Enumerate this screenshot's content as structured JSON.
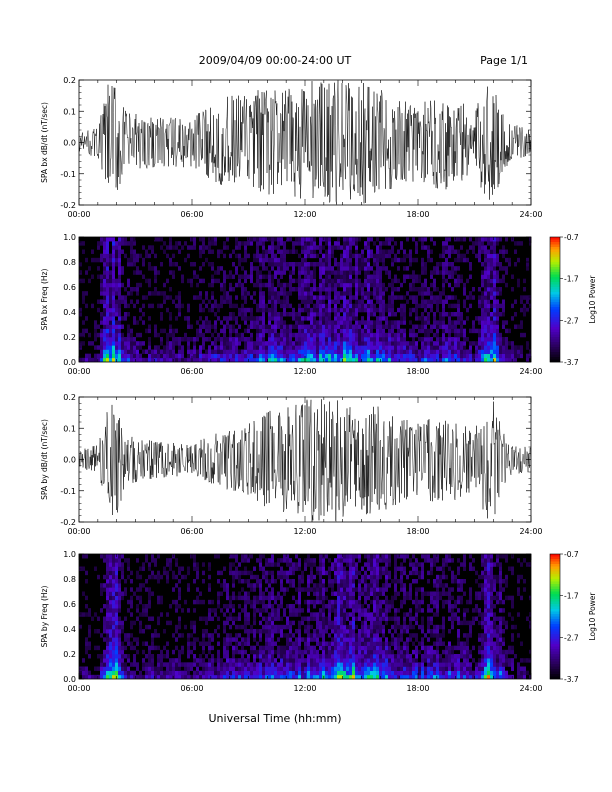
{
  "header": {
    "title": "2009/04/09   00:00-24:00 UT",
    "page": "Page 1/1"
  },
  "footer": {
    "xlabel": "Universal Time (hh:mm)"
  },
  "chart_data": [
    {
      "type": "line",
      "ylabel": "SPA bx dB/dt (nT/sec)",
      "ylim": [
        -0.2,
        0.2
      ],
      "yticks": [
        "0.2",
        "0.1",
        "0.0",
        "-0.1",
        "-0.2"
      ],
      "xticks": [
        "00:00",
        "06:00",
        "12:00",
        "18:00",
        "24:00"
      ],
      "xlim_hours": [
        0,
        24
      ],
      "x": [
        0,
        1,
        1.6,
        1.9,
        2.5,
        4,
        6,
        7,
        8,
        9,
        10,
        11,
        12,
        13,
        14,
        15,
        16,
        17,
        18,
        19,
        20,
        21,
        21.7,
        22,
        22.5,
        23,
        24
      ],
      "y_envelope": [
        0.03,
        0.05,
        0.2,
        0.2,
        0.1,
        0.08,
        0.08,
        0.12,
        0.15,
        0.16,
        0.18,
        0.17,
        0.2,
        0.2,
        0.2,
        0.2,
        0.18,
        0.14,
        0.12,
        0.15,
        0.15,
        0.1,
        0.2,
        0.2,
        0.1,
        0.06,
        0.04
      ],
      "color": "#000000"
    },
    {
      "type": "heatmap",
      "ylabel": "SPA bx Freq (Hz)",
      "ylim": [
        0.0,
        1.0
      ],
      "yticks": [
        "1.0",
        "0.8",
        "0.6",
        "0.4",
        "0.2",
        "0.0"
      ],
      "xticks": [
        "00:00",
        "06:00",
        "12:00",
        "18:00",
        "24:00"
      ],
      "xlim_hours": [
        0,
        24
      ],
      "colorbar": {
        "label": "Log10 Power",
        "min": -3.7,
        "max": -0.7,
        "ticks": [
          "-0.7",
          "-1.7",
          "-2.7",
          "-3.7"
        ]
      },
      "activity_hours": [
        0,
        1,
        1.6,
        1.9,
        2.5,
        4,
        6,
        7,
        8,
        9,
        10,
        11,
        12,
        13,
        14,
        15,
        16,
        17,
        18,
        19,
        20,
        21,
        21.7,
        22,
        22.5,
        23,
        24
      ],
      "activity_level": [
        0.2,
        0.3,
        1.0,
        1.0,
        0.45,
        0.35,
        0.35,
        0.45,
        0.5,
        0.55,
        0.6,
        0.6,
        0.65,
        0.75,
        0.85,
        0.8,
        0.7,
        0.55,
        0.5,
        0.55,
        0.55,
        0.4,
        1.0,
        1.0,
        0.45,
        0.3,
        0.2
      ]
    },
    {
      "type": "line",
      "ylabel": "SPA by dB/dt (nT/sec)",
      "ylim": [
        -0.2,
        0.2
      ],
      "yticks": [
        "0.2",
        "0.1",
        "0.0",
        "-0.1",
        "-0.2"
      ],
      "xticks": [
        "00:00",
        "06:00",
        "12:00",
        "18:00",
        "24:00"
      ],
      "xlim_hours": [
        0,
        24
      ],
      "x": [
        0,
        1,
        1.6,
        1.9,
        2.5,
        4,
        6,
        7,
        8,
        9,
        10,
        11,
        12,
        13,
        14,
        15,
        16,
        17,
        18,
        19,
        20,
        21,
        21.7,
        22,
        22.5,
        23,
        24
      ],
      "y_envelope": [
        0.03,
        0.05,
        0.2,
        0.2,
        0.08,
        0.06,
        0.05,
        0.08,
        0.1,
        0.12,
        0.16,
        0.17,
        0.2,
        0.2,
        0.2,
        0.18,
        0.17,
        0.14,
        0.12,
        0.14,
        0.13,
        0.1,
        0.2,
        0.2,
        0.09,
        0.05,
        0.04
      ],
      "color": "#000000"
    },
    {
      "type": "heatmap",
      "ylabel": "SPA by Freq (Hz)",
      "ylim": [
        0.0,
        1.0
      ],
      "yticks": [
        "1.0",
        "0.8",
        "0.6",
        "0.4",
        "0.2",
        "0.0"
      ],
      "xticks": [
        "00:00",
        "06:00",
        "12:00",
        "18:00",
        "24:00"
      ],
      "xlim_hours": [
        0,
        24
      ],
      "colorbar": {
        "label": "Log10 Power",
        "min": -3.7,
        "max": -0.7,
        "ticks": [
          "-0.7",
          "-1.7",
          "-2.7",
          "-3.7"
        ]
      },
      "activity_hours": [
        0,
        1,
        1.6,
        1.9,
        2.5,
        4,
        6,
        7,
        8,
        9,
        10,
        11,
        12,
        13,
        14,
        15,
        16,
        17,
        18,
        19,
        20,
        21,
        21.7,
        22,
        22.5,
        23,
        24
      ],
      "activity_level": [
        0.2,
        0.3,
        1.0,
        1.0,
        0.45,
        0.35,
        0.35,
        0.45,
        0.5,
        0.55,
        0.6,
        0.6,
        0.65,
        0.75,
        0.9,
        0.85,
        0.7,
        0.55,
        0.5,
        0.55,
        0.55,
        0.4,
        1.0,
        1.0,
        0.45,
        0.3,
        0.2
      ]
    }
  ]
}
